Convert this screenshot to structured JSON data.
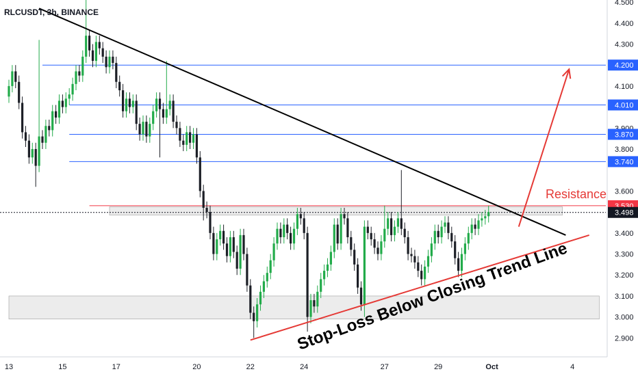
{
  "chart_data": {
    "type": "candlestick",
    "symbol_label": "RLCUSDT, 3h, BINANCE",
    "ylim": [
      2.81,
      4.51
    ],
    "y_ticks": [
      "4.500",
      "4.400",
      "4.300",
      "4.100",
      "3.900",
      "3.800",
      "3.600",
      "3.400",
      "3.300",
      "3.200",
      "3.100",
      "3.000",
      "2.900"
    ],
    "x_ticks": [
      {
        "label": "13",
        "bar": 0
      },
      {
        "label": "15",
        "bar": 16
      },
      {
        "label": "17",
        "bar": 32
      },
      {
        "label": "20",
        "bar": 56
      },
      {
        "label": "22",
        "bar": 72
      },
      {
        "label": "24",
        "bar": 88
      },
      {
        "label": "27",
        "bar": 112
      },
      {
        "label": "29",
        "bar": 128
      },
      {
        "label": "Oct",
        "bar": 144
      },
      {
        "label": "4",
        "bar": 168
      }
    ],
    "price_levels": [
      {
        "label": "4.200",
        "value": 4.2,
        "color": "#2962ff",
        "from_bar": 10
      },
      {
        "label": "4.010",
        "value": 4.01,
        "color": "#2962ff",
        "from_bar": 18
      },
      {
        "label": "3.870",
        "value": 3.87,
        "color": "#2962ff",
        "from_bar": 18
      },
      {
        "label": "3.740",
        "value": 3.74,
        "color": "#2962ff",
        "from_bar": 18
      },
      {
        "label": "3.530",
        "value": 3.53,
        "color": "#f23645",
        "from_bar": 24
      }
    ],
    "current_price": {
      "label": "3.498",
      "value": 3.498
    },
    "zones": [
      {
        "name": "resistance",
        "y1": 3.485,
        "y2": 3.525,
        "from_bar": 30,
        "to_bar": 165
      },
      {
        "name": "support",
        "y1": 2.99,
        "y2": 3.1,
        "from_bar": 0,
        "to_bar": 176
      }
    ],
    "trendlines": [
      {
        "name": "descending",
        "color": "#000000",
        "from": {
          "bar": 9,
          "price": 4.47
        },
        "to": {
          "bar": 166,
          "price": 3.39
        }
      },
      {
        "name": "ascending",
        "color": "#e53935",
        "from": {
          "bar": 72,
          "price": 2.89
        },
        "to": {
          "bar": 173,
          "price": 3.39
        }
      }
    ],
    "arrow": {
      "color": "#e53935",
      "from": {
        "bar": 152,
        "price": 3.43
      },
      "to": {
        "bar": 167,
        "price": 4.18
      }
    },
    "annotations": {
      "resistance": "Resistance",
      "stop_loss": "Stop-Loss Below Closing Trend Line"
    },
    "series": {
      "close": [
        4.1,
        4.17,
        4.12,
        4.02,
        3.88,
        3.84,
        3.76,
        3.8,
        3.72,
        3.86,
        3.83,
        3.91,
        3.89,
        3.98,
        3.95,
        4.03,
        4.0,
        4.04,
        4.06,
        4.11,
        4.17,
        4.15,
        4.24,
        4.34,
        4.27,
        4.22,
        4.31,
        4.28,
        4.24,
        4.19,
        4.24,
        4.21,
        4.12,
        4.08,
        3.98,
        4.04,
        4.0,
        4.03,
        3.92,
        3.87,
        3.93,
        3.86,
        3.92,
        3.98,
        4.04,
        3.99,
        3.95,
        3.99,
        4.03,
        3.93,
        3.9,
        3.84,
        3.82,
        3.88,
        3.83,
        3.87,
        3.76,
        3.6,
        3.52,
        3.5,
        3.4,
        3.3,
        3.37,
        3.41,
        3.35,
        3.29,
        3.38,
        3.31,
        3.23,
        3.39,
        3.3,
        3.15,
        3.02,
        2.98,
        3.06,
        3.12,
        3.17,
        3.21,
        3.27,
        3.35,
        3.42,
        3.38,
        3.44,
        3.4,
        3.35,
        3.42,
        3.49,
        3.47,
        3.4,
        3.0,
        3.08,
        3.05,
        3.12,
        3.18,
        3.22,
        3.25,
        3.31,
        3.44,
        3.35,
        3.49,
        3.47,
        3.38,
        3.32,
        3.25,
        3.14,
        3.06,
        3.43,
        3.4,
        3.37,
        3.33,
        3.3,
        3.36,
        3.42,
        3.47,
        3.39,
        3.43,
        3.47,
        3.42,
        3.38,
        3.3,
        3.29,
        3.26,
        3.22,
        3.18,
        3.24,
        3.29,
        3.35,
        3.41,
        3.38,
        3.43,
        3.45,
        3.4,
        3.36,
        3.28,
        3.22,
        3.3,
        3.35,
        3.4,
        3.44,
        3.42,
        3.46,
        3.47,
        3.48,
        3.5
      ],
      "open": [
        4.05,
        4.1,
        4.17,
        4.12,
        4.02,
        3.88,
        3.84,
        3.76,
        3.8,
        3.72,
        3.86,
        3.83,
        3.91,
        3.89,
        3.98,
        3.95,
        4.03,
        4.0,
        4.04,
        4.06,
        4.11,
        4.17,
        4.15,
        4.24,
        4.34,
        4.27,
        4.22,
        4.31,
        4.28,
        4.24,
        4.19,
        4.24,
        4.21,
        4.12,
        4.08,
        3.98,
        4.04,
        4.0,
        4.03,
        3.92,
        3.87,
        3.93,
        3.86,
        3.92,
        3.98,
        4.04,
        3.99,
        3.95,
        3.99,
        4.03,
        3.93,
        3.9,
        3.84,
        3.82,
        3.88,
        3.83,
        3.87,
        3.76,
        3.6,
        3.52,
        3.5,
        3.4,
        3.3,
        3.37,
        3.41,
        3.35,
        3.29,
        3.38,
        3.31,
        3.23,
        3.39,
        3.3,
        3.15,
        3.02,
        2.98,
        3.06,
        3.12,
        3.17,
        3.21,
        3.27,
        3.35,
        3.42,
        3.38,
        3.44,
        3.4,
        3.35,
        3.42,
        3.49,
        3.47,
        3.4,
        3.0,
        3.08,
        3.05,
        3.12,
        3.18,
        3.22,
        3.25,
        3.31,
        3.44,
        3.35,
        3.49,
        3.47,
        3.38,
        3.32,
        3.25,
        3.14,
        3.06,
        3.43,
        3.4,
        3.37,
        3.33,
        3.3,
        3.36,
        3.42,
        3.47,
        3.39,
        3.43,
        3.47,
        3.42,
        3.38,
        3.3,
        3.29,
        3.26,
        3.22,
        3.18,
        3.24,
        3.29,
        3.35,
        3.41,
        3.38,
        3.43,
        3.45,
        3.4,
        3.36,
        3.28,
        3.22,
        3.3,
        3.35,
        3.4,
        3.44,
        3.42,
        3.46,
        3.47,
        3.48
      ]
    },
    "wicks": [
      {
        "bar": 9,
        "high": 4.32
      },
      {
        "bar": 8,
        "low": 3.62
      },
      {
        "bar": 23,
        "high": 4.51
      },
      {
        "bar": 47,
        "high": 4.22
      },
      {
        "bar": 73,
        "low": 2.9
      },
      {
        "bar": 89,
        "low": 2.93
      },
      {
        "bar": 106,
        "low": 3.0
      },
      {
        "bar": 112,
        "high": 3.53
      },
      {
        "bar": 117,
        "high": 3.7
      },
      {
        "bar": 45,
        "low": 3.76
      },
      {
        "bar": 58,
        "low": 3.46
      }
    ],
    "colors": {
      "up": "#26a69a",
      "down": "#ef5350",
      "candle_up": "#22ab4a",
      "candle_down": "#1c1f26"
    }
  }
}
